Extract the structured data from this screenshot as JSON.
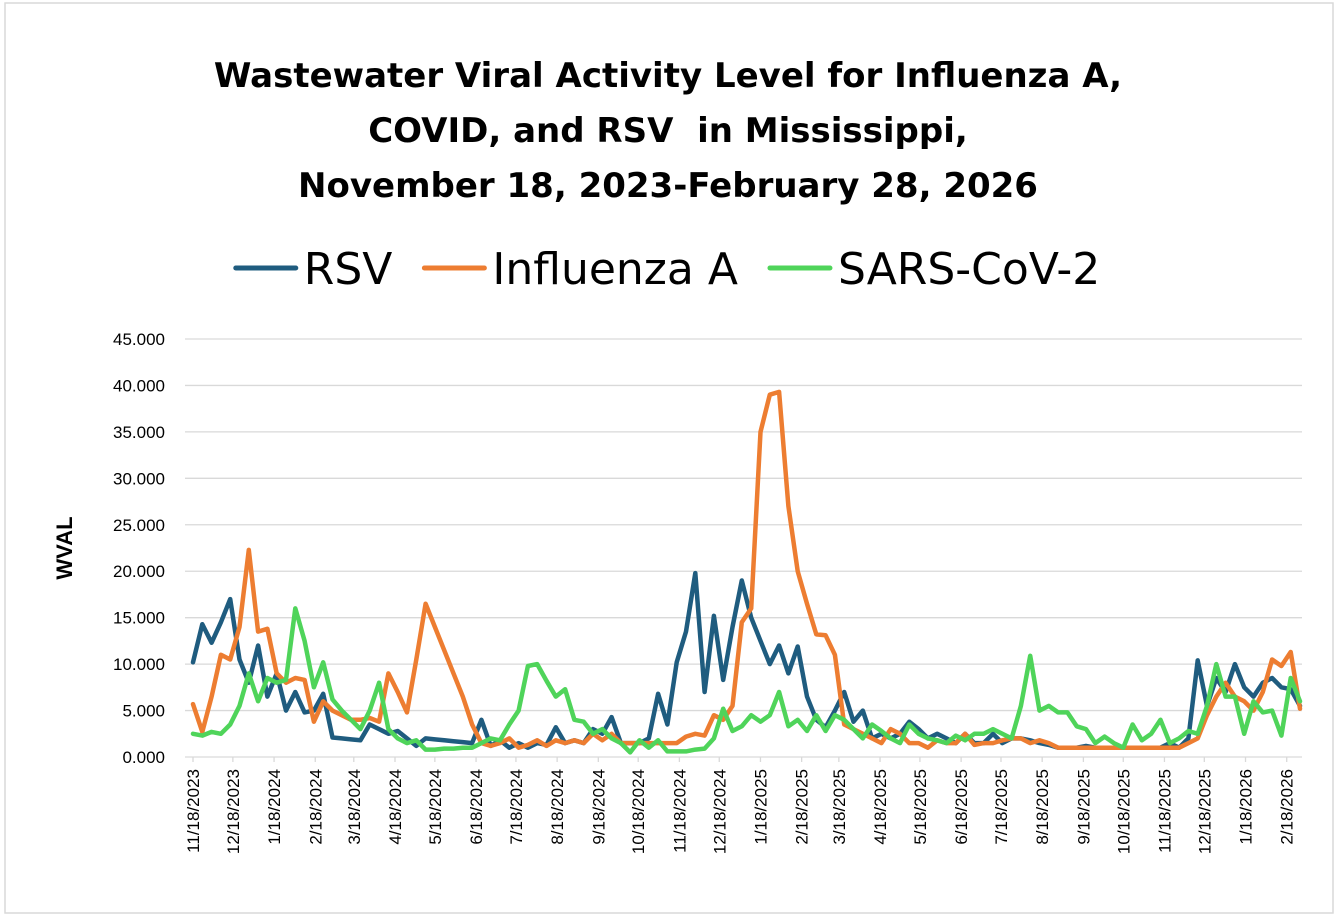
{
  "chart_data": {
    "type": "line",
    "title": [
      "Wastewater Viral Activity Level for Influenza A,",
      "COVID, and RSV  in Mississippi,",
      "November 18, 2023-February 28, 2026"
    ],
    "y_label": "WVAL",
    "x": [
      "11/18/2023",
      "11/25/2023",
      "12/2/2023",
      "12/9/2023",
      "12/16/2023",
      "12/23/2023",
      "12/30/2023",
      "1/6/2024",
      "1/13/2024",
      "1/20/2024",
      "1/27/2024",
      "2/3/2024",
      "2/10/2024",
      "2/17/2024",
      "2/24/2024",
      "3/2/2024",
      "3/9/2024",
      "3/16/2024",
      "3/23/2024",
      "3/30/2024",
      "4/6/2024",
      "4/13/2024",
      "4/20/2024",
      "4/27/2024",
      "5/4/2024",
      "5/11/2024",
      "5/18/2024",
      "5/25/2024",
      "6/1/2024",
      "6/8/2024",
      "6/15/2024",
      "6/22/2024",
      "6/29/2024",
      "7/6/2024",
      "7/13/2024",
      "7/20/2024",
      "7/27/2024",
      "8/3/2024",
      "8/10/2024",
      "8/17/2024",
      "8/24/2024",
      "8/31/2024",
      "9/7/2024",
      "9/14/2024",
      "9/21/2024",
      "9/28/2024",
      "10/5/2024",
      "10/12/2024",
      "10/19/2024",
      "10/26/2024",
      "11/2/2024",
      "11/9/2024",
      "11/16/2024",
      "11/23/2024",
      "11/30/2024",
      "12/7/2024",
      "12/14/2024",
      "12/21/2024",
      "12/28/2024",
      "1/4/2025",
      "1/11/2025",
      "1/18/2025",
      "1/25/2025",
      "2/1/2025",
      "2/8/2025",
      "2/15/2025",
      "2/22/2025",
      "3/1/2025",
      "3/8/2025",
      "3/15/2025",
      "3/22/2025",
      "3/29/2025",
      "4/5/2025",
      "4/12/2025",
      "4/19/2025",
      "4/26/2025",
      "5/3/2025",
      "5/10/2025",
      "5/17/2025",
      "5/24/2025",
      "5/31/2025",
      "6/7/2025",
      "6/14/2025",
      "6/21/2025",
      "6/28/2025",
      "7/5/2025",
      "7/12/2025",
      "7/19/2025",
      "7/26/2025",
      "8/2/2025",
      "8/9/2025",
      "8/16/2025",
      "8/23/2025",
      "8/30/2025",
      "9/6/2025",
      "9/13/2025",
      "9/20/2025",
      "9/27/2025",
      "10/4/2025",
      "10/11/2025",
      "10/18/2025",
      "10/25/2025",
      "11/1/2025",
      "11/8/2025",
      "11/15/2025",
      "11/22/2025",
      "11/29/2025",
      "12/6/2025",
      "12/13/2025",
      "12/20/2025",
      "12/27/2025",
      "1/3/2026",
      "1/10/2026",
      "1/17/2026",
      "1/24/2026",
      "1/31/2026",
      "2/7/2026",
      "2/14/2026",
      "2/21/2026",
      "2/28/2026"
    ],
    "series": [
      {
        "name": "RSV",
        "color": "#1f5c7f",
        "values": [
          10.2,
          14.3,
          12.3,
          14.5,
          17.0,
          10.5,
          8.0,
          12.0,
          6.5,
          9.0,
          5.0,
          7.0,
          4.8,
          5.0,
          6.8,
          2.1,
          2.0,
          1.9,
          1.8,
          3.5,
          3.0,
          2.5,
          2.8,
          2.0,
          1.2,
          2.0,
          1.9,
          1.8,
          1.7,
          1.6,
          1.5,
          4.0,
          1.2,
          1.8,
          1.0,
          1.5,
          1.0,
          1.5,
          1.3,
          3.2,
          1.5,
          1.8,
          1.5,
          3.0,
          2.5,
          4.3,
          1.5,
          1.5,
          1.5,
          2.0,
          6.8,
          3.5,
          10.2,
          13.5,
          19.8,
          7.0,
          15.2,
          8.3,
          14.0,
          19.0,
          15.0,
          12.5,
          10.0,
          12.0,
          9.0,
          11.9,
          6.5,
          4.0,
          3.2,
          5.0,
          7.0,
          3.8,
          5.0,
          2.0,
          2.5,
          2.0,
          2.5,
          3.8,
          3.0,
          2.0,
          2.5,
          2.0,
          1.5,
          2.5,
          1.5,
          1.5,
          2.5,
          1.5,
          2.0,
          2.0,
          1.8,
          1.5,
          1.3,
          1.0,
          1.0,
          1.0,
          1.2,
          1.0,
          1.0,
          1.0,
          1.0,
          1.0,
          1.0,
          1.0,
          1.0,
          1.5,
          1.0,
          2.0,
          10.4,
          5.5,
          8.5,
          7.0,
          10.0,
          7.5,
          6.5,
          8.0,
          8.5,
          7.5,
          7.3,
          5.5
        ]
      },
      {
        "name": "Influenza A",
        "color": "#ed7d31",
        "values": [
          5.7,
          2.7,
          6.5,
          11.0,
          10.5,
          14.0,
          22.3,
          13.5,
          13.8,
          9.0,
          8.0,
          8.5,
          8.3,
          3.8,
          6.0,
          5.0,
          4.5,
          4.0,
          4.0,
          4.2,
          3.8,
          9.0,
          7.0,
          4.8,
          10.5,
          16.5,
          14.0,
          11.5,
          9.0,
          6.5,
          3.5,
          1.5,
          1.2,
          1.5,
          2.0,
          1.0,
          1.3,
          1.8,
          1.2,
          1.8,
          1.5,
          1.8,
          1.5,
          2.5,
          1.8,
          2.5,
          1.5,
          1.5,
          1.5,
          1.5,
          1.5,
          1.5,
          1.5,
          2.2,
          2.5,
          2.3,
          4.5,
          4.0,
          5.5,
          14.5,
          16.0,
          35.0,
          39.0,
          39.3,
          27.0,
          20.0,
          16.5,
          13.2,
          13.1,
          11.0,
          3.5,
          3.0,
          2.5,
          2.0,
          1.5,
          3.0,
          2.5,
          1.5,
          1.5,
          1.0,
          1.8,
          1.5,
          1.5,
          2.5,
          1.3,
          1.5,
          1.5,
          1.8,
          2.0,
          2.0,
          1.5,
          1.8,
          1.5,
          1.0,
          1.0,
          1.0,
          1.0,
          1.0,
          1.0,
          1.0,
          1.0,
          1.0,
          1.0,
          1.0,
          1.0,
          1.0,
          1.0,
          1.5,
          2.0,
          4.5,
          6.5,
          8.0,
          6.5,
          6.0,
          5.0,
          7.0,
          10.5,
          9.8,
          11.3,
          5.2
        ]
      },
      {
        "name": "SARS-CoV-2",
        "color": "#4fd45a",
        "values": [
          2.5,
          2.3,
          2.7,
          2.5,
          3.5,
          5.5,
          9.0,
          6.0,
          8.5,
          8.0,
          8.3,
          16.0,
          12.5,
          7.5,
          10.2,
          6.2,
          5.0,
          4.0,
          3.0,
          5.0,
          8.0,
          3.0,
          2.0,
          1.5,
          1.8,
          0.8,
          0.8,
          0.9,
          0.9,
          1.0,
          1.0,
          1.5,
          2.0,
          1.8,
          3.5,
          5.0,
          9.8,
          10.0,
          8.2,
          6.5,
          7.3,
          4.0,
          3.8,
          2.5,
          3.0,
          2.0,
          1.5,
          0.5,
          1.8,
          1.0,
          1.8,
          0.6,
          0.6,
          0.6,
          0.8,
          0.9,
          2.0,
          5.2,
          2.8,
          3.3,
          4.5,
          3.8,
          4.5,
          7.0,
          3.3,
          4.0,
          2.8,
          4.5,
          2.8,
          4.5,
          4.0,
          3.0,
          2.0,
          3.5,
          2.8,
          2.0,
          1.5,
          3.5,
          2.5,
          2.0,
          1.8,
          1.5,
          2.3,
          1.8,
          2.5,
          2.5,
          3.0,
          2.5,
          2.0,
          5.5,
          10.9,
          5.0,
          5.5,
          4.8,
          4.8,
          3.3,
          3.0,
          1.5,
          2.2,
          1.5,
          1.0,
          3.5,
          1.8,
          2.5,
          4.0,
          1.5,
          2.0,
          2.8,
          2.5,
          5.5,
          10.0,
          6.5,
          6.5,
          2.5,
          6.0,
          4.8,
          5.0,
          2.3,
          8.5,
          6.0
        ]
      }
    ],
    "xlim": [
      "11/18/2023",
      "2/28/2026"
    ],
    "xticks": [
      "11/18/2023",
      "12/18/2023",
      "1/18/2024",
      "2/18/2024",
      "3/18/2024",
      "4/18/2024",
      "5/18/2024",
      "6/18/2024",
      "7/18/2024",
      "8/18/2024",
      "9/18/2024",
      "10/18/2024",
      "11/18/2024",
      "12/18/2024",
      "1/18/2025",
      "2/18/2025",
      "3/18/2025",
      "4/18/2025",
      "5/18/2025",
      "6/18/2025",
      "7/18/2025",
      "8/18/2025",
      "9/18/2025",
      "10/18/2025",
      "11/18/2025",
      "12/18/2025",
      "1/18/2026",
      "2/18/2026"
    ],
    "ylim": [
      0,
      45
    ],
    "yticks": [
      {
        "value": 0,
        "label": "0.000"
      },
      {
        "value": 5,
        "label": "5.000"
      },
      {
        "value": 10,
        "label": "10.000"
      },
      {
        "value": 15,
        "label": "15.000"
      },
      {
        "value": 20,
        "label": "20.000"
      },
      {
        "value": 25,
        "label": "25.000"
      },
      {
        "value": 30,
        "label": "30.000"
      },
      {
        "value": 35,
        "label": "35.000"
      },
      {
        "value": 40,
        "label": "40.000"
      },
      {
        "value": 45,
        "label": "45.000"
      }
    ],
    "grid": true,
    "legend": "top"
  }
}
